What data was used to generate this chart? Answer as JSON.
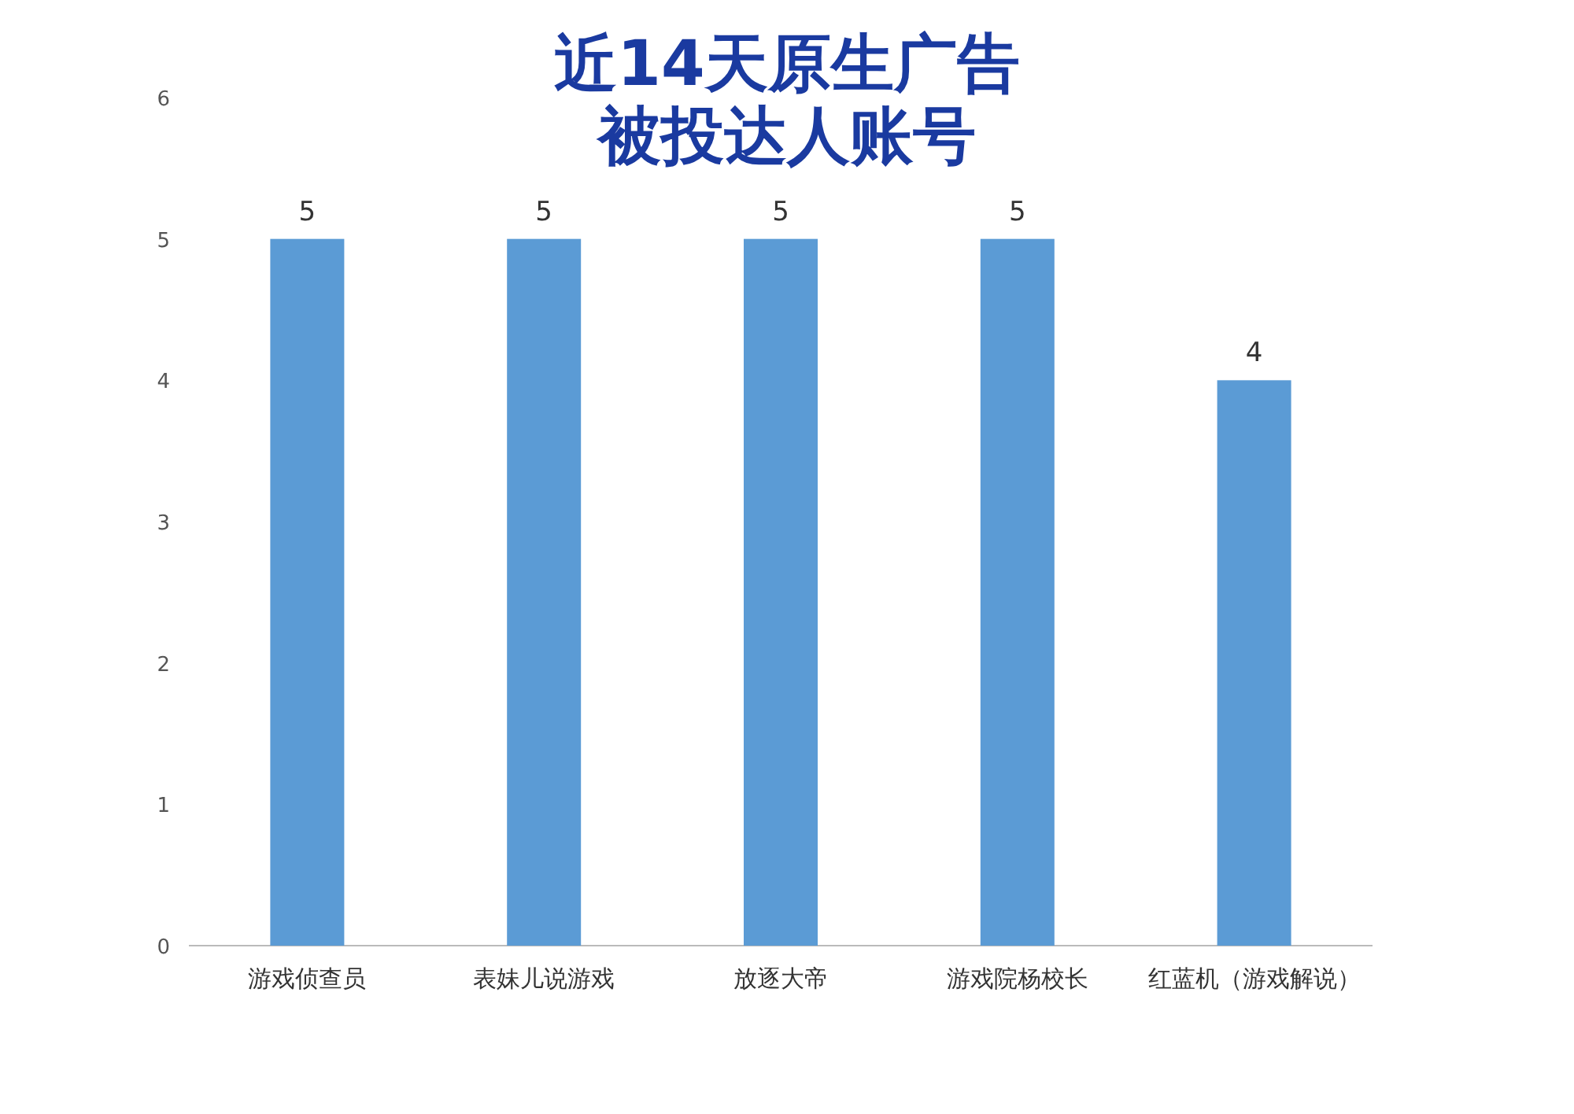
{
  "chart_data": {
    "type": "bar",
    "title": "近14天原生广告被投达人账号",
    "categories": [
      "游戏侦查员",
      "表妹儿说游戏",
      "放逐大帝",
      "游戏院杨校长",
      "红蓝机（游戏解说）"
    ],
    "values": [
      5,
      5,
      5,
      5,
      4
    ],
    "color": "#5b9bd5",
    "ylim": [
      0,
      6
    ],
    "yticks": [
      0,
      1,
      2,
      3,
      4,
      5,
      6
    ],
    "data_labels": true
  }
}
